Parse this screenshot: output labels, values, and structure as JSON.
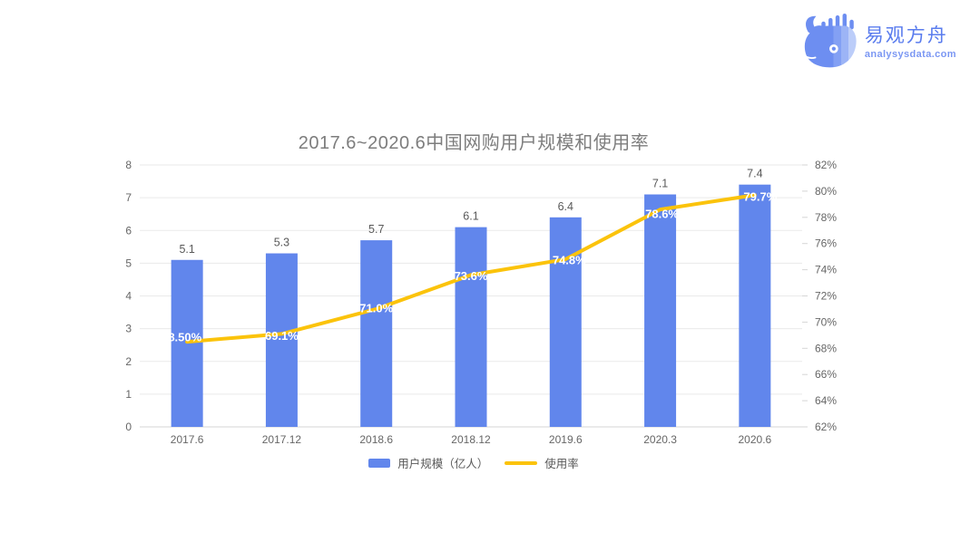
{
  "logo": {
    "brand_name": "易观方舟",
    "domain": "analysysdata.com",
    "brand_color": "#5a7cee",
    "icon": "whale-with-bar-chart"
  },
  "chart_data": {
    "type": "combo",
    "title": "2017.6~2020.6中国网购用户规模和使用率",
    "categories": [
      "2017.6",
      "2017.12",
      "2018.6",
      "2018.12",
      "2019.6",
      "2020.3",
      "2020.6"
    ],
    "series": [
      {
        "name": "用户规模（亿人）",
        "type": "bar",
        "axis": "left",
        "values": [
          5.1,
          5.3,
          5.7,
          6.1,
          6.4,
          7.1,
          7.4
        ],
        "labels": [
          "5.1",
          "5.3",
          "5.7",
          "6.1",
          "6.4",
          "7.1",
          "7.4"
        ],
        "color": "#6186EC"
      },
      {
        "name": "使用率",
        "type": "line",
        "axis": "right",
        "values": [
          68.5,
          69.1,
          71.0,
          73.6,
          74.8,
          78.6,
          79.7
        ],
        "labels": [
          "68.50%",
          "69.1%",
          "71.0%",
          "73.6%",
          "74.8%",
          "78.6%",
          "79.7%"
        ],
        "color": "#FBC30B"
      }
    ],
    "left_axis": {
      "min": 0,
      "max": 8,
      "step": 1,
      "ticks": [
        "0",
        "1",
        "2",
        "3",
        "4",
        "5",
        "6",
        "7",
        "8"
      ]
    },
    "right_axis": {
      "min": 62,
      "max": 82,
      "step": 2,
      "ticks": [
        "62%",
        "64%",
        "66%",
        "68%",
        "70%",
        "72%",
        "74%",
        "76%",
        "78%",
        "80%",
        "82%"
      ]
    },
    "grid": true,
    "legend_position": "bottom"
  }
}
